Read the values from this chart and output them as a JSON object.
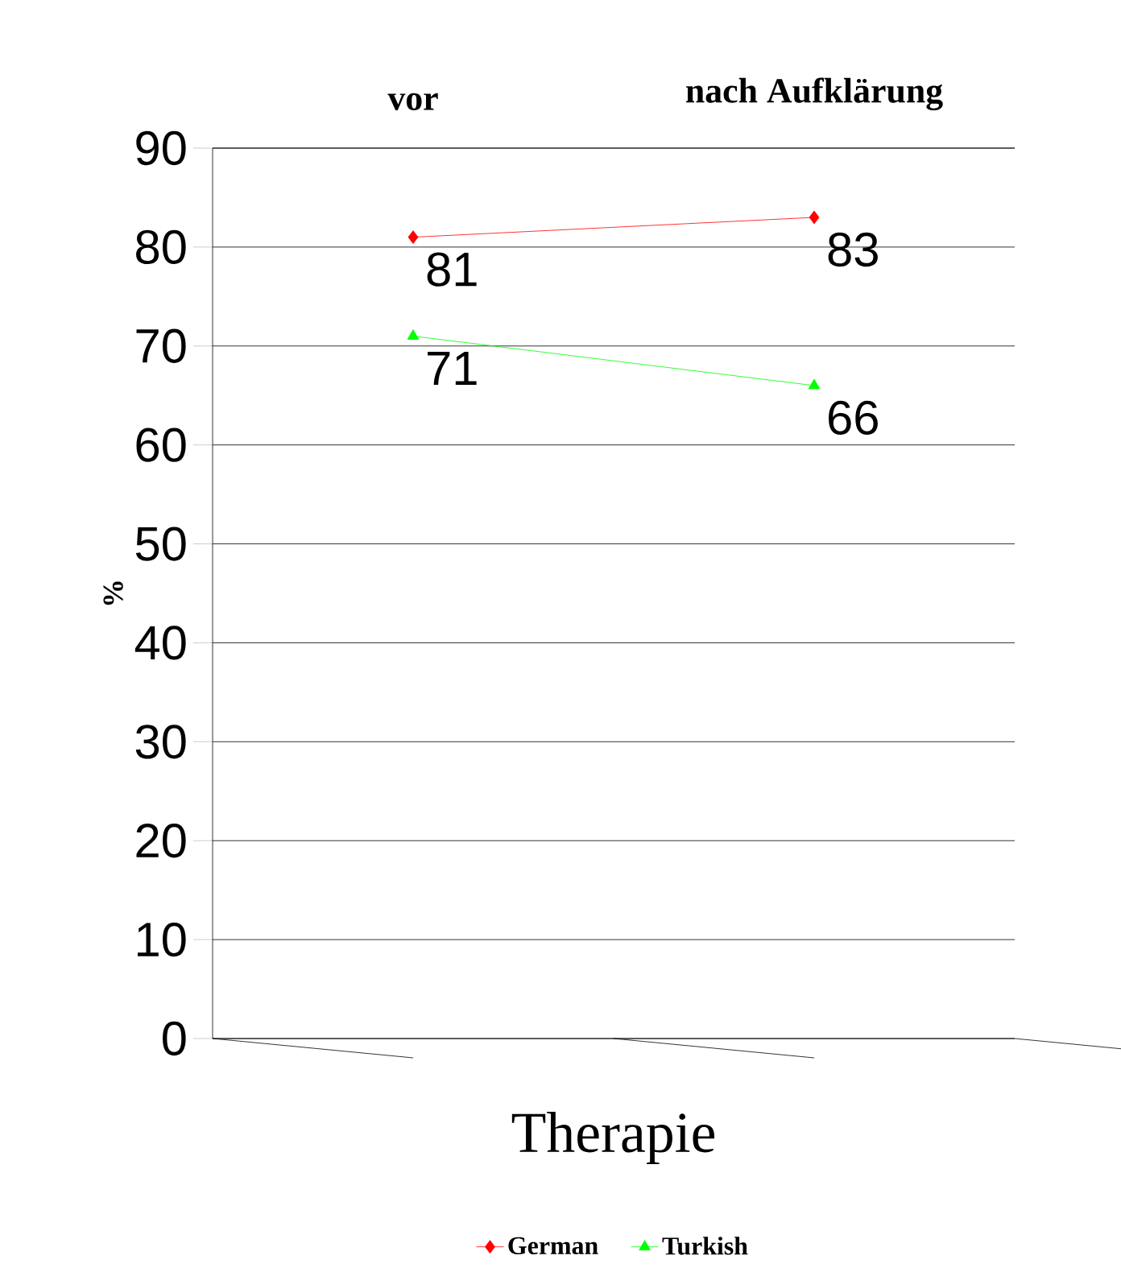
{
  "chart_data": {
    "type": "line",
    "categories": [
      "vor",
      "nach Aufklärung"
    ],
    "xlabel": "Therapie",
    "ylabel": "%",
    "series": [
      {
        "name": "German",
        "color": "#ff0000",
        "values": [
          81,
          83
        ],
        "marker": "diamond"
      },
      {
        "name": "Turkish",
        "color": "#00ff00",
        "values": [
          71,
          66
        ],
        "marker": "triangle"
      }
    ],
    "ylim": [
      0,
      90
    ],
    "yticks": [
      0,
      10,
      20,
      30,
      40,
      50,
      60,
      70,
      80,
      90
    ],
    "grid": "y",
    "legend": "bottom",
    "data_labels": true
  }
}
